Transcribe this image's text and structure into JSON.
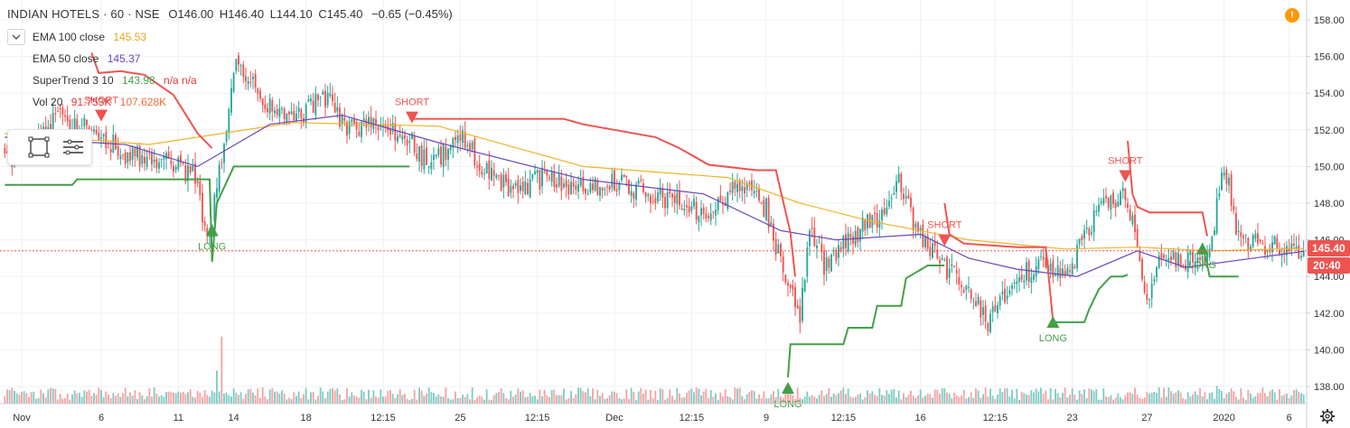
{
  "header": {
    "symbol_line": "INDIAN HOTELS · 60 · NSE",
    "open": "O146.00",
    "high": "H146.40",
    "low": "L144.10",
    "close": "C145.40",
    "change": "−0.65 (−0.45%)"
  },
  "legend": [
    {
      "label": "EMA 100 close",
      "value": "145.53",
      "value_color": "#e8a317"
    },
    {
      "label": "EMA 50 close",
      "value": "145.37",
      "value_color": "#6b48b8"
    },
    {
      "label": "SuperTrend 3 10",
      "value": "143.98",
      "extra": "n/a  n/a",
      "value_color": "#43a047",
      "extra_color": "#e53935"
    },
    {
      "label": "Vol 20",
      "value": "91.753K",
      "extra": "107.628K",
      "value_color": "#e53935",
      "extra_color": "#ef6c3a"
    }
  ],
  "icons": {
    "collapse": "chevron-down-icon",
    "rect_tool": "rectangle-tool-icon",
    "menu_tool": "menu-lines-icon",
    "alert": "alert-icon",
    "settings": "gear-icon"
  },
  "alert_glyph": "!",
  "price_badge": {
    "price": "145.40",
    "time": "20:40",
    "color": "#ef5350"
  },
  "colors": {
    "up": "#26a69a",
    "down": "#ef5350",
    "ema100": "#f0b429",
    "ema50": "#6b48b8",
    "st_up": "#43a047",
    "st_down": "#ef5350",
    "vol_up": "#80cbc4",
    "vol_down": "#f4a4a4"
  },
  "chart_data": {
    "type": "candlestick",
    "y_axis": {
      "ticks": [
        "138.00",
        "140.00",
        "142.00",
        "144.00",
        "146.00",
        "148.00",
        "150.00",
        "152.00",
        "154.00",
        "156.00",
        "158.00"
      ],
      "ylim": [
        137.3,
        158.6
      ]
    },
    "x_axis": {
      "labels": [
        "Nov",
        "6",
        "11",
        "14",
        "18",
        "12:15",
        "25",
        "12:15",
        "Dec",
        "12:15",
        "9",
        "12:15",
        "16",
        "12:15",
        "23",
        "27",
        "2020",
        "6"
      ],
      "positions": [
        7,
        40,
        72,
        95,
        125,
        157,
        189,
        221,
        253,
        285,
        316,
        348,
        380,
        411,
        443,
        474,
        506,
        533
      ],
      "count": 540
    },
    "signals": [
      {
        "label": "SHORT",
        "bar": 40,
        "price": 152.8
      },
      {
        "label": "LONG",
        "bar": 86,
        "price": 146.5
      },
      {
        "label": "SHORT",
        "bar": 169,
        "price": 152.7
      },
      {
        "label": "LONG",
        "bar": 325,
        "price": 137.9
      },
      {
        "label": "SHORT",
        "bar": 390,
        "price": 146.0
      },
      {
        "label": "LONG",
        "bar": 435,
        "price": 141.5
      },
      {
        "label": "SHORT",
        "bar": 465,
        "price": 149.5
      },
      {
        "label": "LONG",
        "bar": 497,
        "price": 145.5
      }
    ],
    "anchors": [
      [
        0,
        150.4
      ],
      [
        10,
        151.0
      ],
      [
        22,
        152.6
      ],
      [
        38,
        152.0
      ],
      [
        50,
        150.6
      ],
      [
        64,
        150.4
      ],
      [
        78,
        149.6
      ],
      [
        85,
        145.8
      ],
      [
        88,
        149.0
      ],
      [
        96,
        155.5
      ],
      [
        110,
        153.2
      ],
      [
        120,
        152.6
      ],
      [
        134,
        153.8
      ],
      [
        140,
        152.3
      ],
      [
        158,
        152.0
      ],
      [
        168,
        151.5
      ],
      [
        176,
        150.0
      ],
      [
        190,
        151.6
      ],
      [
        198,
        150.0
      ],
      [
        210,
        148.6
      ],
      [
        224,
        149.4
      ],
      [
        238,
        148.8
      ],
      [
        250,
        149.2
      ],
      [
        266,
        148.6
      ],
      [
        282,
        147.9
      ],
      [
        292,
        147.4
      ],
      [
        304,
        149.0
      ],
      [
        316,
        147.7
      ],
      [
        322,
        144.8
      ],
      [
        330,
        142.0
      ],
      [
        334,
        146.6
      ],
      [
        340,
        144.6
      ],
      [
        352,
        146.3
      ],
      [
        362,
        147.1
      ],
      [
        372,
        149.2
      ],
      [
        378,
        146.5
      ],
      [
        386,
        145.1
      ],
      [
        398,
        143.5
      ],
      [
        408,
        141.6
      ],
      [
        418,
        143.6
      ],
      [
        430,
        144.8
      ],
      [
        440,
        143.9
      ],
      [
        454,
        147.8
      ],
      [
        460,
        148.2
      ],
      [
        466,
        148.3
      ],
      [
        474,
        142.4
      ],
      [
        480,
        145.0
      ],
      [
        490,
        144.8
      ],
      [
        500,
        145.5
      ],
      [
        506,
        150.2
      ],
      [
        512,
        146.0
      ],
      [
        539,
        145.4
      ]
    ],
    "ema100": [
      [
        0,
        151.8
      ],
      [
        60,
        151.2
      ],
      [
        120,
        152.4
      ],
      [
        180,
        152.2
      ],
      [
        240,
        150.0
      ],
      [
        300,
        149.4
      ],
      [
        330,
        148.0
      ],
      [
        360,
        147.0
      ],
      [
        400,
        146.0
      ],
      [
        440,
        145.5
      ],
      [
        470,
        145.6
      ],
      [
        500,
        145.4
      ],
      [
        539,
        145.53
      ]
    ],
    "ema50": [
      [
        0,
        151.6
      ],
      [
        50,
        151.2
      ],
      [
        80,
        150.0
      ],
      [
        110,
        152.3
      ],
      [
        140,
        152.8
      ],
      [
        180,
        151.3
      ],
      [
        240,
        149.3
      ],
      [
        290,
        148.5
      ],
      [
        322,
        146.5
      ],
      [
        345,
        146.0
      ],
      [
        380,
        146.3
      ],
      [
        400,
        145.0
      ],
      [
        420,
        144.4
      ],
      [
        445,
        144.0
      ],
      [
        470,
        145.4
      ],
      [
        490,
        144.5
      ],
      [
        539,
        145.37
      ]
    ],
    "supertrend": [
      {
        "dir": "up",
        "pts": [
          [
            0,
            149.0
          ],
          [
            28,
            149.0
          ],
          [
            30,
            149.3
          ],
          [
            85,
            149.3
          ],
          [
            86,
            144.8
          ],
          [
            88,
            148.0
          ],
          [
            95,
            150.0
          ],
          [
            112,
            150.0
          ],
          [
            113,
            150.0
          ],
          [
            168,
            150.0
          ]
        ]
      },
      {
        "dir": "down",
        "pts": [
          [
            36,
            156.2
          ],
          [
            39,
            155.1
          ],
          [
            48,
            155.2
          ],
          [
            58,
            155.0
          ],
          [
            70,
            153.9
          ],
          [
            80,
            151.8
          ],
          [
            86,
            151.0
          ]
        ]
      },
      {
        "dir": "down",
        "pts": [
          [
            168,
            152.6
          ],
          [
            172,
            152.6
          ],
          [
            232,
            152.6
          ],
          [
            240,
            152.3
          ],
          [
            270,
            151.6
          ],
          [
            280,
            151.0
          ],
          [
            292,
            150.1
          ],
          [
            312,
            149.8
          ],
          [
            320,
            149.8
          ],
          [
            326,
            146.4
          ],
          [
            328,
            144.0
          ]
        ]
      },
      {
        "dir": "up",
        "pts": [
          [
            325,
            138.5
          ],
          [
            326,
            140.3
          ],
          [
            348,
            140.3
          ],
          [
            350,
            141.2
          ],
          [
            360,
            141.2
          ],
          [
            362,
            142.4
          ],
          [
            372,
            142.4
          ],
          [
            374,
            143.9
          ],
          [
            383,
            144.6
          ],
          [
            390,
            144.6
          ]
        ]
      },
      {
        "dir": "down",
        "pts": [
          [
            390,
            148.0
          ],
          [
            392,
            146.3
          ],
          [
            398,
            145.8
          ],
          [
            420,
            145.6
          ],
          [
            432,
            145.6
          ],
          [
            435,
            141.6
          ]
        ]
      },
      {
        "dir": "up",
        "pts": [
          [
            435,
            141.5
          ],
          [
            448,
            141.5
          ],
          [
            450,
            142.2
          ],
          [
            454,
            143.3
          ],
          [
            459,
            144.0
          ],
          [
            464,
            144.0
          ],
          [
            466,
            144.1
          ]
        ]
      },
      {
        "dir": "down",
        "pts": [
          [
            466,
            151.4
          ],
          [
            468,
            148.5
          ],
          [
            470,
            147.8
          ],
          [
            475,
            147.5
          ],
          [
            497,
            147.5
          ],
          [
            499,
            146.2
          ]
        ]
      },
      {
        "dir": "up",
        "pts": [
          [
            497,
            145.8
          ],
          [
            500,
            144.0
          ],
          [
            512,
            144.0
          ]
        ]
      }
    ],
    "volume_spikes": [
      [
        88,
        4.0
      ],
      [
        90,
        4.3
      ],
      [
        105,
        2.4
      ],
      [
        246,
        2.6
      ],
      [
        276,
        1.2
      ],
      [
        325,
        1.6
      ],
      [
        388,
        1.3
      ],
      [
        442,
        1.8
      ],
      [
        469,
        1.0
      ],
      [
        503,
        1.5
      ]
    ]
  }
}
